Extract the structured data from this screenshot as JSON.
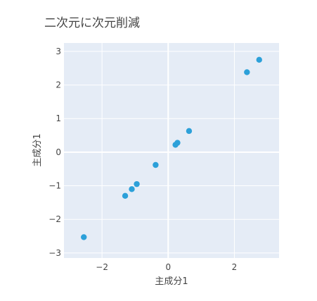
{
  "chart_data": {
    "type": "scatter",
    "title": "二次元に次元削減",
    "xlabel": "主成分1",
    "ylabel": "主成分1",
    "xlim": [
      -3.15,
      3.35
    ],
    "ylim": [
      -3.15,
      3.25
    ],
    "xticks": [
      -2,
      0,
      2
    ],
    "yticks": [
      -3,
      -2,
      -1,
      0,
      1,
      2,
      3
    ],
    "xtick_labels": [
      "−2",
      "0",
      "2"
    ],
    "ytick_labels": [
      "−3",
      "−2",
      "−1",
      "0",
      "1",
      "2",
      "3"
    ],
    "grid": true,
    "marker_color": "#2ca0d9",
    "plot_background": "#e5ecf6",
    "points": [
      {
        "x": -2.55,
        "y": -2.53
      },
      {
        "x": -1.3,
        "y": -1.3
      },
      {
        "x": -1.1,
        "y": -1.1
      },
      {
        "x": -0.95,
        "y": -0.95
      },
      {
        "x": -0.38,
        "y": -0.38
      },
      {
        "x": 0.22,
        "y": 0.22
      },
      {
        "x": 0.28,
        "y": 0.28
      },
      {
        "x": 0.63,
        "y": 0.63
      },
      {
        "x": 2.38,
        "y": 2.38
      },
      {
        "x": 2.75,
        "y": 2.75
      }
    ]
  }
}
